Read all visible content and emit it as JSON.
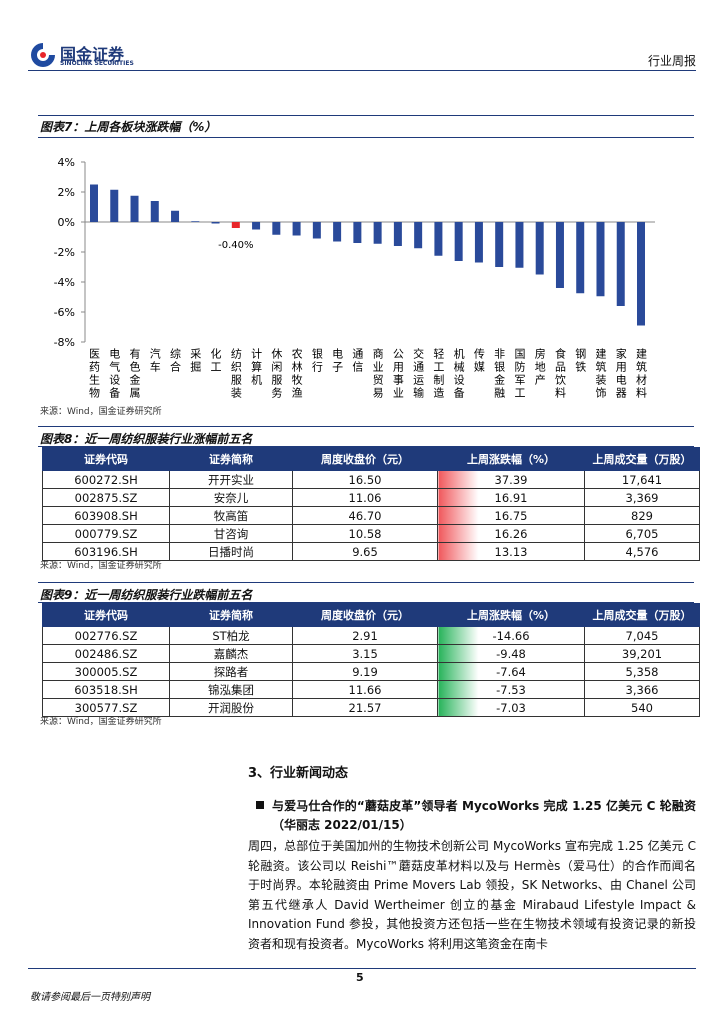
{
  "header": {
    "logo_cn": "国金证券",
    "logo_en": "SINOLINK SECURITIES",
    "report_type": "行业周报"
  },
  "chart_data": {
    "type": "bar",
    "title": "图表7：上周各板块涨跌幅（%）",
    "categories": [
      "医药生物",
      "电气设备",
      "有色金属",
      "汽车",
      "综合",
      "采掘",
      "化工",
      "纺织服装",
      "计算机",
      "休闲服务",
      "农林牧渔",
      "银行",
      "电子",
      "通信",
      "商业贸易",
      "公用事业",
      "交通运输",
      "轻工制造",
      "机械设备",
      "传媒",
      "非银金融",
      "国防军工",
      "房地产",
      "食品饮料",
      "钢铁",
      "建筑装饰",
      "家用电器",
      "建筑材料"
    ],
    "values": [
      2.5,
      2.15,
      1.75,
      1.4,
      0.75,
      0.05,
      -0.1,
      -0.4,
      -0.5,
      -0.85,
      -0.9,
      -1.1,
      -1.3,
      -1.4,
      -1.45,
      -1.6,
      -1.75,
      -2.25,
      -2.6,
      -2.7,
      -3.0,
      -3.05,
      -3.5,
      -4.4,
      -4.75,
      -4.95,
      -5.6,
      -6.9
    ],
    "value_labels": [
      null,
      null,
      null,
      null,
      null,
      null,
      null,
      "-0.40%",
      null,
      null,
      null,
      null,
      null,
      null,
      null,
      null,
      null,
      null,
      null,
      null,
      null,
      null,
      null,
      null,
      null,
      null,
      null,
      null
    ],
    "colors": [
      "#2a4a9a",
      "#2a4a9a",
      "#2a4a9a",
      "#2a4a9a",
      "#2a4a9a",
      "#2a4a9a",
      "#2a4a9a",
      "#e8262a",
      "#2a4a9a",
      "#2a4a9a",
      "#2a4a9a",
      "#2a4a9a",
      "#2a4a9a",
      "#2a4a9a",
      "#2a4a9a",
      "#2a4a9a",
      "#2a4a9a",
      "#2a4a9a",
      "#2a4a9a",
      "#2a4a9a",
      "#2a4a9a",
      "#2a4a9a",
      "#2a4a9a",
      "#2a4a9a",
      "#2a4a9a",
      "#2a4a9a",
      "#2a4a9a",
      "#2a4a9a"
    ],
    "ylim": [
      -8,
      4
    ],
    "yticks": [
      {
        "value": 4,
        "label": "4%"
      },
      {
        "value": 2,
        "label": "2%"
      },
      {
        "value": 0,
        "label": "0%"
      },
      {
        "value": -2,
        "label": "-2%"
      },
      {
        "value": -4,
        "label": "-4%"
      },
      {
        "value": -6,
        "label": "-6%"
      },
      {
        "value": -8,
        "label": "-8%"
      }
    ]
  },
  "chart_source": "来源：Wind，国金证券研究所",
  "tables": [
    {
      "title": "图表8：近一周纺织服装行业涨幅前五名",
      "bar_color": "#f0585c",
      "columns": [
        "证券代码",
        "证券简称",
        "周度收盘价（元）",
        "上周涨跌幅（%）",
        "上周成交量（万股）"
      ],
      "rows": [
        [
          "600272.SH",
          "开开实业",
          "16.50",
          "37.39",
          "17,641"
        ],
        [
          "002875.SZ",
          "安奈儿",
          "11.06",
          "16.91",
          "3,369"
        ],
        [
          "603908.SH",
          "牧高笛",
          "46.70",
          "16.75",
          "829"
        ],
        [
          "000779.SZ",
          "甘咨询",
          "10.58",
          "16.26",
          "6,705"
        ],
        [
          "603196.SH",
          "日播时尚",
          "9.65",
          "13.13",
          "4,576"
        ]
      ],
      "source": "来源：Wind，国金证券研究所"
    },
    {
      "title": "图表9：近一周纺织服装行业跌幅前五名",
      "bar_color": "#27b35a",
      "columns": [
        "证券代码",
        "证券简称",
        "周度收盘价（元）",
        "上周涨跌幅（%）",
        "上周成交量（万股）"
      ],
      "rows": [
        [
          "002776.SZ",
          "ST柏龙",
          "2.91",
          "-14.66",
          "7,045"
        ],
        [
          "002486.SZ",
          "嘉麟杰",
          "3.15",
          "-9.48",
          "39,201"
        ],
        [
          "300005.SZ",
          "探路者",
          "9.19",
          "-7.64",
          "5,358"
        ],
        [
          "603518.SH",
          "锦泓集团",
          "11.66",
          "-7.53",
          "3,366"
        ],
        [
          "300577.SZ",
          "开润股份",
          "21.57",
          "-7.03",
          "540"
        ]
      ],
      "source": "来源：Wind，国金证券研究所"
    }
  ],
  "section": {
    "heading": "3、行业新闻动态",
    "news_title": "与爱马仕合作的“蘑菇皮革”领导者 MycoWorks 完成 1.25 亿美元 C 轮融资（华丽志 2022/01/15）",
    "paragraph": "周四，总部位于美国加州的生物技术创新公司 MycoWorks 宣布完成 1.25 亿美元 C 轮融资。该公司以 Reishi™蘑菇皮革材料以及与 Hermès（爱马仕）的合作而闻名于时尚界。本轮融资由 Prime Movers Lab 领投，SK Networks、由 Chanel 公司第五代继承人 David Wertheimer 创立的基金 Mirabaud Lifestyle Impact & Innovation Fund 参投，其他投资方还包括一些在生物技术领域有投资记录的新投资者和现有投资者。MycoWorks 将利用这笔资金在南卡"
  },
  "page_number": "5",
  "footer": "敬请参阅最后一页特别声明"
}
